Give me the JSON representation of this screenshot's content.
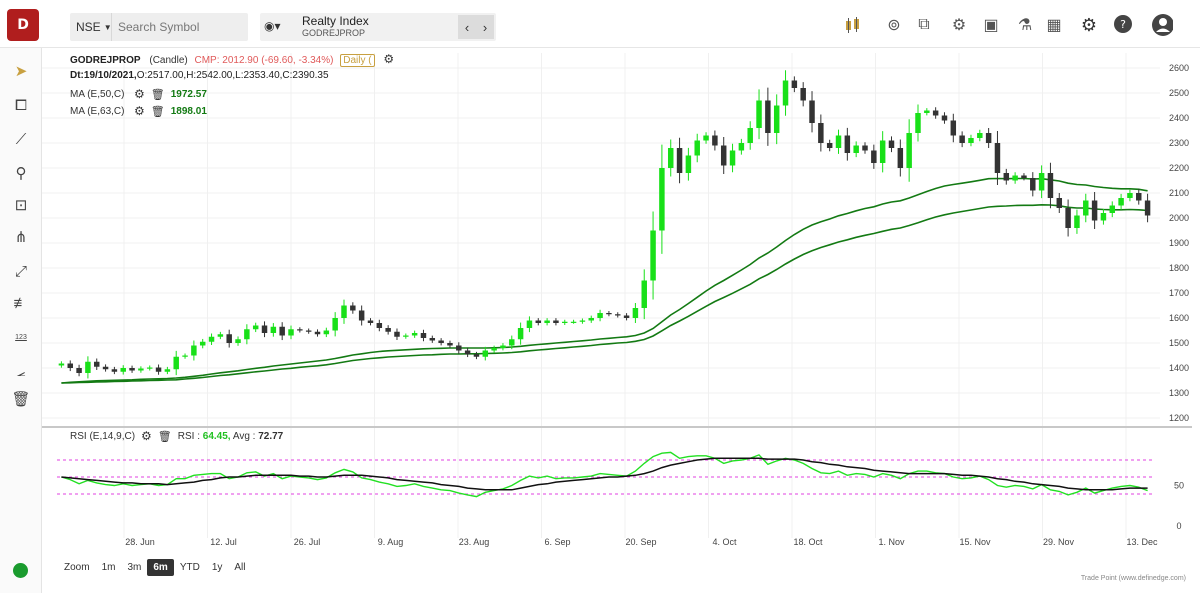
{
  "topbar": {
    "logo_text": "D",
    "exchange": "NSE",
    "search_placeholder": "Search Symbol",
    "index_name": "Realty Index",
    "index_symbol": "GODREJPROP",
    "prev_icon": "chevron-left-icon",
    "next_icon": "chevron-right-icon",
    "icons": [
      "candle-type-icon",
      "snapshot-icon",
      "compare-icon",
      "settings-search-icon",
      "save-icon",
      "scanner-icon",
      "layout-icon",
      "gear-icon",
      "help-icon",
      "user-icon"
    ]
  },
  "left_toolbar": {
    "icons": [
      "pointer-icon",
      "rectangle-icon",
      "trendline-icon",
      "fib-icon",
      "text-note-icon",
      "fork-icon",
      "ray-icon",
      "channel-icon",
      "numeric-icon",
      "angle-icon",
      "delete-icon"
    ],
    "numeric_label": "123"
  },
  "header": {
    "symbol": "GODREJPROP",
    "chart_type": "(Candle)",
    "cmp": "CMP: 2012.90 (-69.60, -3.34%)",
    "interval": "Daily (",
    "ohlc_date": "Dt:19/10/2021,",
    "ohlc_o": "O:2517.00,",
    "ohlc_h": "H:2542.00,",
    "ohlc_l": "L:2353.40,",
    "ohlc_c": "C:2390.35"
  },
  "indicators": [
    {
      "label": "MA (E,50,C)",
      "value": "1972.57"
    },
    {
      "label": "MA (E,63,C)",
      "value": "1898.01"
    }
  ],
  "rsi": {
    "label": "RSI (E,14,9,C)",
    "rsi_label": "RSI :",
    "rsi_value": "64.45,",
    "avg_label": "Avg :",
    "avg_value": "72.77",
    "level_label": "50",
    "zero_label": "0"
  },
  "zoom": {
    "label": "Zoom",
    "options": [
      "1m",
      "3m",
      "6m",
      "YTD",
      "1y",
      "All"
    ],
    "active": "6m"
  },
  "credit": "Trade Point (www.definedge.com)",
  "colors": {
    "up": "#18e018",
    "down": "#333333",
    "ma": "#137a13",
    "rsi": "#22e022",
    "rsi_avg": "#111111",
    "band": "#e040e0",
    "cmp": "#e05a5a"
  },
  "chart_data": {
    "type": "candlestick",
    "symbol": "GODREJPROP",
    "y_ticks": [
      1200,
      1300,
      1400,
      1500,
      1600,
      1700,
      1800,
      1900,
      2000,
      2100,
      2200,
      2300,
      2400,
      2500,
      2600
    ],
    "ylim": [
      1180,
      2640
    ],
    "x_labels": [
      "28. Jun",
      "12. Jul",
      "26. Jul",
      "9. Aug",
      "23. Aug",
      "6. Sep",
      "20. Sep",
      "4. Oct",
      "18. Oct",
      "1. Nov",
      "15. Nov",
      "29. Nov",
      "13. Dec"
    ],
    "closes": [
      1418,
      1400,
      1380,
      1425,
      1405,
      1395,
      1385,
      1400,
      1390,
      1398,
      1402,
      1385,
      1395,
      1445,
      1450,
      1490,
      1505,
      1525,
      1535,
      1500,
      1515,
      1555,
      1570,
      1540,
      1565,
      1530,
      1555,
      1550,
      1545,
      1535,
      1550,
      1600,
      1650,
      1630,
      1590,
      1580,
      1560,
      1545,
      1525,
      1530,
      1540,
      1520,
      1510,
      1500,
      1490,
      1470,
      1455,
      1445,
      1470,
      1480,
      1490,
      1515,
      1560,
      1590,
      1580,
      1590,
      1580,
      1585,
      1585,
      1590,
      1600,
      1620,
      1615,
      1610,
      1600,
      1640,
      1750,
      1950,
      2200,
      2280,
      2180,
      2250,
      2310,
      2330,
      2290,
      2210,
      2270,
      2300,
      2360,
      2470,
      2340,
      2450,
      2550,
      2520,
      2470,
      2380,
      2300,
      2280,
      2330,
      2260,
      2290,
      2270,
      2220,
      2310,
      2280,
      2200,
      2340,
      2420,
      2430,
      2410,
      2390,
      2330,
      2300,
      2320,
      2340,
      2300,
      2180,
      2150,
      2170,
      2160,
      2110,
      2180,
      2080,
      2040,
      1960,
      2010,
      2070,
      1990,
      2020,
      2050,
      2080,
      2100,
      2070,
      2010
    ],
    "ma50": [
      1340,
      1343,
      1345,
      1347,
      1349,
      1350,
      1351,
      1352,
      1353,
      1355,
      1356,
      1357,
      1358,
      1360,
      1363,
      1367,
      1371,
      1376,
      1381,
      1385,
      1389,
      1394,
      1399,
      1403,
      1408,
      1412,
      1416,
      1420,
      1424,
      1428,
      1432,
      1438,
      1445,
      1452,
      1457,
      1462,
      1466,
      1469,
      1471,
      1473,
      1475,
      1477,
      1478,
      1479,
      1480,
      1480,
      1480,
      1480,
      1480,
      1481,
      1482,
      1484,
      1487,
      1491,
      1494,
      1497,
      1500,
      1503,
      1506,
      1509,
      1512,
      1516,
      1519,
      1522,
      1525,
      1530,
      1540,
      1558,
      1585,
      1612,
      1634,
      1658,
      1683,
      1708,
      1731,
      1750,
      1771,
      1792,
      1814,
      1840,
      1860,
      1884,
      1910,
      1934,
      1955,
      1972,
      1985,
      1996,
      2009,
      2018,
      2029,
      2038,
      2045,
      2056,
      2064,
      2069,
      2080,
      2093,
      2106,
      2118,
      2128,
      2134,
      2139,
      2145,
      2151,
      2157,
      2158,
      2157,
      2158,
      2158,
      2156,
      2157,
      2153,
      2148,
      2139,
      2134,
      2132,
      2126,
      2122,
      2119,
      2117,
      2117,
      2115,
      2109
    ],
    "ma63": [
      1340,
      1341,
      1342,
      1343,
      1344,
      1345,
      1346,
      1347,
      1348,
      1349,
      1350,
      1351,
      1352,
      1353,
      1356,
      1359,
      1362,
      1366,
      1370,
      1373,
      1377,
      1381,
      1385,
      1388,
      1392,
      1396,
      1399,
      1403,
      1406,
      1409,
      1413,
      1418,
      1424,
      1430,
      1434,
      1438,
      1441,
      1444,
      1446,
      1448,
      1450,
      1452,
      1453,
      1455,
      1456,
      1456,
      1457,
      1457,
      1458,
      1459,
      1460,
      1462,
      1465,
      1469,
      1472,
      1475,
      1478,
      1481,
      1484,
      1487,
      1490,
      1494,
      1497,
      1500,
      1502,
      1507,
      1514,
      1528,
      1549,
      1570,
      1588,
      1607,
      1627,
      1647,
      1666,
      1682,
      1699,
      1717,
      1735,
      1757,
      1774,
      1794,
      1816,
      1836,
      1854,
      1869,
      1882,
      1893,
      1904,
      1913,
      1923,
      1931,
      1938,
      1947,
      1955,
      1960,
      1970,
      1981,
      1993,
      2004,
      2013,
      2020,
      2026,
      2032,
      2038,
      2044,
      2047,
      2048,
      2050,
      2051,
      2051,
      2053,
      2052,
      2049,
      2043,
      2040,
      2040,
      2036,
      2034,
      2033,
      2033,
      2034,
      2033,
      2030
    ],
    "rsi": [
      60,
      57,
      52,
      56,
      53,
      51,
      50,
      52,
      50,
      51,
      52,
      50,
      51,
      58,
      58,
      62,
      63,
      64,
      64,
      58,
      60,
      65,
      66,
      61,
      64,
      58,
      61,
      60,
      59,
      57,
      59,
      65,
      69,
      66,
      59,
      57,
      54,
      52,
      49,
      50,
      52,
      49,
      47,
      45,
      44,
      41,
      39,
      37,
      42,
      44,
      46,
      50,
      56,
      61,
      59,
      61,
      58,
      59,
      59,
      60,
      61,
      64,
      63,
      62,
      61,
      67,
      76,
      84,
      88,
      89,
      82,
      84,
      85,
      85,
      82,
      76,
      79,
      80,
      82,
      86,
      75,
      79,
      82,
      80,
      76,
      70,
      65,
      64,
      67,
      62,
      64,
      63,
      60,
      64,
      62,
      58,
      64,
      67,
      67,
      65,
      64,
      60,
      58,
      59,
      61,
      57,
      50,
      48,
      50,
      49,
      46,
      51,
      45,
      43,
      39,
      42,
      47,
      41,
      44,
      47,
      49,
      50,
      48,
      44
    ],
    "rsi_avg": [
      60,
      59,
      58,
      57,
      56,
      55,
      54,
      53,
      53,
      52,
      52,
      52,
      51,
      52,
      53,
      54,
      56,
      57,
      59,
      60,
      60,
      61,
      62,
      62,
      62,
      62,
      62,
      61,
      61,
      60,
      60,
      61,
      62,
      62,
      62,
      61,
      60,
      59,
      57,
      56,
      55,
      54,
      53,
      51,
      50,
      49,
      47,
      46,
      45,
      45,
      45,
      45,
      47,
      49,
      51,
      52,
      54,
      55,
      56,
      57,
      58,
      59,
      60,
      60,
      61,
      62,
      64,
      67,
      71,
      74,
      76,
      78,
      80,
      81,
      82,
      82,
      82,
      82,
      82,
      82,
      81,
      81,
      81,
      81,
      80,
      78,
      77,
      75,
      74,
      72,
      71,
      70,
      68,
      67,
      66,
      65,
      64,
      64,
      64,
      64,
      64,
      63,
      62,
      62,
      61,
      60,
      58,
      57,
      55,
      54,
      52,
      51,
      50,
      49,
      47,
      46,
      45,
      45,
      45,
      45,
      46,
      47,
      47,
      47
    ],
    "rsi_levels": [
      80,
      60,
      40
    ],
    "rsi_ylim": [
      0,
      100
    ]
  }
}
